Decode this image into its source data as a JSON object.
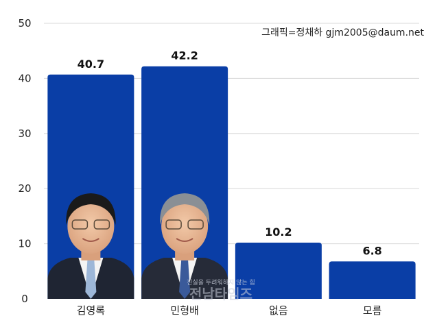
{
  "credit": "그래픽=정채하 gjm2005@daum.net",
  "watermark": "진실을 두려워하지 않는 힘",
  "watermark_brand": "전남타임즈",
  "chart_data": {
    "type": "bar",
    "title": "",
    "xlabel": "",
    "ylabel": "",
    "categories": [
      "김영록",
      "민형배",
      "없음",
      "모름"
    ],
    "values": [
      40.7,
      42.2,
      10.2,
      6.8
    ],
    "value_labels": [
      "40.7",
      "42.2",
      "10.2",
      "6.8"
    ],
    "ylim": [
      0,
      50
    ],
    "yticks": [
      0,
      10,
      20,
      30,
      40,
      50
    ],
    "grid": true,
    "bar_color": "#0a3ea6",
    "grid_color": "#d8d8d8",
    "bar_photos": [
      "portrait of man in suit",
      "portrait of man in suit",
      null,
      null
    ]
  }
}
